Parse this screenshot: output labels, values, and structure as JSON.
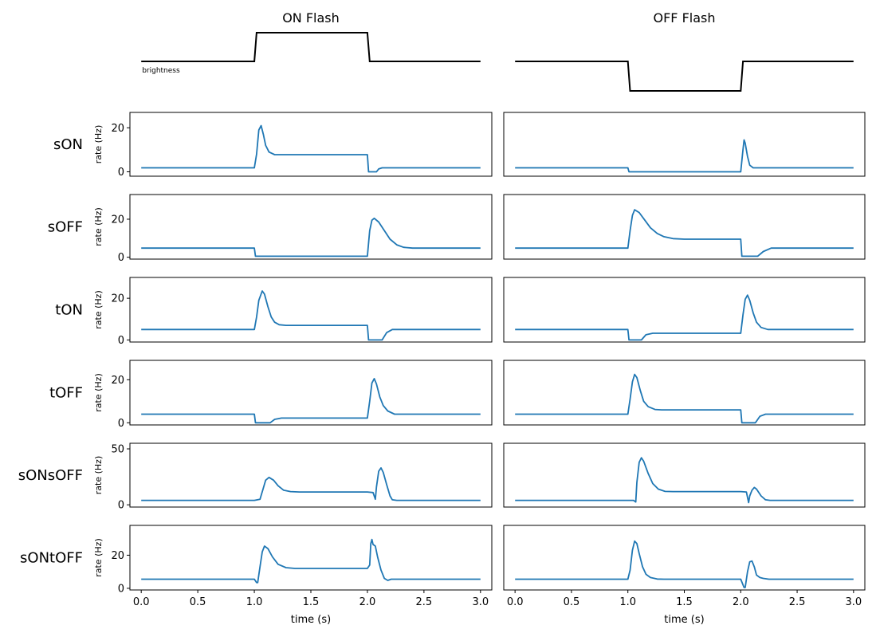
{
  "chart_data": {
    "type": "line",
    "columns": [
      {
        "title": "ON Flash"
      },
      {
        "title": "OFF Flash"
      }
    ],
    "stimulus": {
      "label": "brightness",
      "on_flash": {
        "x": [
          0,
          1.0,
          1.02,
          2.0,
          2.02,
          3.0
        ],
        "y": [
          0,
          0,
          1,
          1,
          0,
          0
        ]
      },
      "off_flash": {
        "x": [
          0,
          1.0,
          1.02,
          2.0,
          2.02,
          3.0
        ],
        "y": [
          0,
          0,
          -1,
          -1,
          0,
          0
        ]
      }
    },
    "ylabel": "rate (Hz)",
    "xlabel": "time (s)",
    "xlim": [
      -0.1,
      3.1
    ],
    "xticks": [
      0.0,
      0.5,
      1.0,
      1.5,
      2.0,
      2.5,
      3.0
    ],
    "xtick_labels": [
      "0.0",
      "0.5",
      "1.0",
      "1.5",
      "2.0",
      "2.5",
      "3.0"
    ],
    "line_color": "#1f77b4",
    "stimulus_color": "#000000",
    "rows": [
      {
        "name": "sON",
        "ylim": [
          -2,
          27
        ],
        "yticks": [
          0,
          20
        ],
        "on": {
          "x": [
            0,
            1.0,
            1.02,
            1.04,
            1.06,
            1.08,
            1.1,
            1.13,
            1.18,
            2.0,
            2.01,
            2.08,
            2.1,
            2.13,
            3.0
          ],
          "y": [
            1.8,
            1.8,
            8,
            19,
            21,
            17,
            12,
            9,
            7.8,
            7.8,
            0,
            0,
            1.3,
            1.8,
            1.8
          ]
        },
        "off": {
          "x": [
            0,
            1.0,
            1.01,
            2.0,
            2.02,
            2.03,
            2.04,
            2.06,
            2.08,
            2.11,
            3.0
          ],
          "y": [
            1.8,
            1.8,
            0,
            0,
            10,
            14.5,
            13,
            7,
            3,
            1.8,
            1.8
          ]
        }
      },
      {
        "name": "sOFF",
        "ylim": [
          -1,
          33
        ],
        "yticks": [
          0,
          20
        ],
        "on": {
          "x": [
            0,
            1.0,
            1.01,
            2.0,
            2.02,
            2.04,
            2.06,
            2.1,
            2.15,
            2.2,
            2.26,
            2.32,
            2.4,
            3.0
          ],
          "y": [
            4.8,
            4.8,
            0.5,
            0.5,
            14,
            19.5,
            20.5,
            18.5,
            14,
            9.5,
            6.5,
            5.2,
            4.8,
            4.8
          ]
        },
        "off": {
          "x": [
            0,
            1.0,
            1.02,
            1.04,
            1.06,
            1.1,
            1.15,
            1.2,
            1.26,
            1.32,
            1.4,
            1.5,
            2.0,
            2.01,
            2.15,
            2.2,
            2.27,
            3.0
          ],
          "y": [
            4.8,
            4.8,
            14,
            22,
            25,
            23.5,
            19.5,
            15.5,
            12.5,
            10.8,
            9.8,
            9.5,
            9.5,
            0.5,
            0.5,
            3,
            4.8,
            4.8
          ]
        }
      },
      {
        "name": "tON",
        "ylim": [
          -1,
          30
        ],
        "yticks": [
          0,
          20
        ],
        "on": {
          "x": [
            0,
            1.0,
            1.02,
            1.04,
            1.07,
            1.09,
            1.12,
            1.15,
            1.18,
            1.22,
            1.28,
            2.0,
            2.01,
            2.13,
            2.17,
            2.22,
            3.0
          ],
          "y": [
            5,
            5,
            11,
            19,
            23.5,
            22,
            16,
            11,
            8.5,
            7.3,
            7,
            7,
            0,
            0,
            3.5,
            5,
            5
          ]
        },
        "off": {
          "x": [
            0,
            1.0,
            1.01,
            1.12,
            1.16,
            1.22,
            2.0,
            2.02,
            2.04,
            2.06,
            2.08,
            2.11,
            2.14,
            2.18,
            2.24,
            3.0
          ],
          "y": [
            5,
            5,
            0,
            0,
            2.5,
            3.2,
            3.2,
            12,
            19.5,
            21.5,
            19,
            13,
            8.5,
            6,
            5,
            5
          ]
        }
      },
      {
        "name": "tOFF",
        "ylim": [
          -1,
          29
        ],
        "yticks": [
          0,
          20
        ],
        "on": {
          "x": [
            0,
            1.0,
            1.01,
            1.14,
            1.18,
            1.24,
            2.0,
            2.02,
            2.04,
            2.06,
            2.08,
            2.11,
            2.14,
            2.18,
            2.24,
            3.0
          ],
          "y": [
            4,
            4,
            0,
            0,
            1.6,
            2.2,
            2.2,
            10,
            18.5,
            20.5,
            18,
            12,
            8,
            5.5,
            4,
            4
          ]
        },
        "off": {
          "x": [
            0,
            1.0,
            1.02,
            1.04,
            1.06,
            1.08,
            1.11,
            1.14,
            1.18,
            1.24,
            1.3,
            2.0,
            2.01,
            2.13,
            2.17,
            2.22,
            3.0
          ],
          "y": [
            4,
            4,
            11,
            19,
            22.5,
            21,
            15,
            10,
            7.5,
            6.2,
            6,
            6,
            0,
            0,
            3,
            4,
            4
          ]
        }
      },
      {
        "name": "sONsOFF",
        "ylim": [
          -2,
          55
        ],
        "yticks": [
          0,
          50
        ],
        "on": {
          "x": [
            0,
            1.0,
            1.05,
            1.08,
            1.1,
            1.13,
            1.17,
            1.21,
            1.26,
            1.32,
            1.4,
            2.0,
            2.05,
            2.07,
            2.08,
            2.1,
            2.12,
            2.14,
            2.17,
            2.2,
            2.22,
            2.26,
            3.0
          ],
          "y": [
            4,
            4,
            5,
            15,
            22,
            24.5,
            22,
            17,
            13,
            11.8,
            11.5,
            11.5,
            11,
            5,
            16,
            30,
            33,
            29,
            18,
            8,
            4.5,
            4,
            4
          ]
        },
        "off": {
          "x": [
            0,
            1.0,
            1.05,
            1.07,
            1.08,
            1.1,
            1.12,
            1.14,
            1.18,
            1.22,
            1.27,
            1.33,
            1.4,
            2.0,
            2.05,
            2.07,
            2.08,
            2.1,
            2.12,
            2.14,
            2.18,
            2.22,
            2.26,
            3.0
          ],
          "y": [
            4,
            4,
            4,
            2.5,
            20,
            38,
            42,
            39,
            28,
            19,
            14,
            12,
            11.8,
            11.8,
            11.5,
            2,
            8,
            13,
            15.5,
            14,
            8,
            4.5,
            4,
            4
          ]
        }
      },
      {
        "name": "sONtOFF",
        "ylim": [
          -1,
          38
        ],
        "yticks": [
          0,
          20
        ],
        "on": {
          "x": [
            0,
            1.0,
            1.02,
            1.03,
            1.05,
            1.07,
            1.09,
            1.12,
            1.16,
            1.21,
            1.28,
            1.36,
            2.0,
            2.02,
            2.03,
            2.04,
            2.05,
            2.07,
            2.09,
            2.12,
            2.15,
            2.18,
            2.21,
            2.26,
            3.0
          ],
          "y": [
            5.5,
            5.5,
            3.5,
            3.5,
            13,
            22,
            25.5,
            24,
            19,
            14.5,
            12.5,
            12,
            12,
            14,
            27,
            29.5,
            26.5,
            25.5,
            19,
            11,
            6,
            4.8,
            5.5,
            5.5,
            5.5
          ]
        },
        "off": {
          "x": [
            0,
            1.0,
            1.02,
            1.04,
            1.06,
            1.08,
            1.1,
            1.13,
            1.16,
            1.2,
            1.26,
            1.32,
            2.0,
            2.03,
            2.04,
            2.06,
            2.08,
            2.1,
            2.12,
            2.14,
            2.17,
            2.2,
            2.25,
            3.0
          ],
          "y": [
            5.5,
            5.5,
            11,
            23,
            28.5,
            27,
            21,
            13,
            8.5,
            6.5,
            5.6,
            5.5,
            5.5,
            0.5,
            0.5,
            10,
            16,
            16.5,
            13,
            8,
            6.5,
            6,
            5.5,
            5.5
          ]
        }
      }
    ]
  }
}
